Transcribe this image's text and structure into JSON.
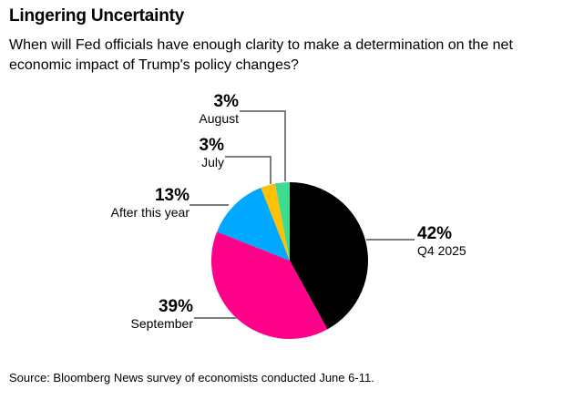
{
  "header": {
    "title": "Lingering Uncertainty",
    "subtitle_line1": "When will Fed officials have enough clarity to make a determination on the net",
    "subtitle_line2": "economic impact of Trump's policy changes?"
  },
  "chart_data": {
    "type": "pie",
    "title": "Lingering Uncertainty",
    "unit": "%",
    "direction": "clockwise",
    "start_angle_deg": 0,
    "legend_position": "callout-labels",
    "slices": [
      {
        "label": "Q4 2025",
        "value": 42,
        "pct_label": "42%",
        "color": "#000000"
      },
      {
        "label": "September",
        "value": 39,
        "pct_label": "39%",
        "color": "#ff0088"
      },
      {
        "label": "After this year",
        "value": 13,
        "pct_label": "13%",
        "color": "#00a8ff"
      },
      {
        "label": "July",
        "value": 3,
        "pct_label": "3%",
        "color": "#ffc106"
      },
      {
        "label": "August",
        "value": 3,
        "pct_label": "3%",
        "color": "#3edc8e"
      }
    ],
    "leader_line_color": "#7d7d7d"
  },
  "footer": {
    "source": "Source: Bloomberg News survey of economists conducted June 6-11."
  }
}
